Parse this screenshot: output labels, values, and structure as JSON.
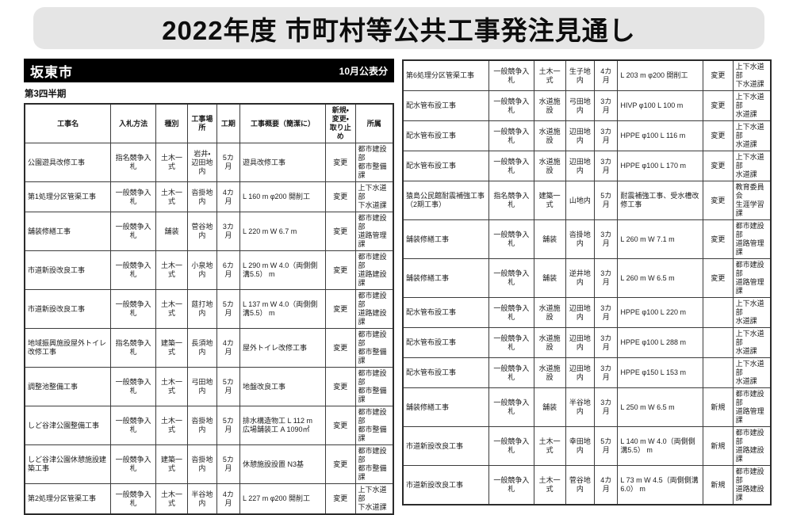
{
  "banner": {
    "title": "2022年度 市町村等公共工事発注見通し"
  },
  "panel": {
    "municipality": "坂東市",
    "publication_label": "10月公表分",
    "quarter_label": "第3四半期"
  },
  "colors": {
    "banner_bg": "#e5e5e5",
    "bar_bg": "#000000",
    "bar_text": "#ffffff",
    "table_border": "#3c3c3c"
  },
  "table": {
    "columns": [
      "工事名",
      "入札方法",
      "種別",
      "工事場所",
      "工期",
      "工事概要（簡潔に）",
      "新規・\n変更・\n取り止め",
      "所属"
    ],
    "column_aligns": [
      "left",
      "center",
      "center",
      "center",
      "center",
      "left",
      "center",
      "left"
    ],
    "left_rows": [
      [
        "公園遊具改修工事",
        "指名競争入札",
        "土木一式",
        "岩井・辺田地内",
        "5カ月",
        "遊具改修工事",
        "変更",
        "都市建設部\n都市整備課"
      ],
      [
        "第1処理分区管渠工事",
        "一般競争入札",
        "土木一式",
        "沓掛地内",
        "4カ月",
        "L 160 m  φ200 開削工",
        "変更",
        "上下水道部\n下水道課"
      ],
      [
        "舗装修繕工事",
        "一般競争入札",
        "舗装",
        "菅谷地内",
        "3カ月",
        "L 220 m  W 6.7 m",
        "変更",
        "都市建設部\n道路管理課"
      ],
      [
        "市道新設改良工事",
        "一般競争入札",
        "土木一式",
        "小泉地内",
        "6カ月",
        "L 290 m  W 4.0（両側側溝5.5） m",
        "変更",
        "都市建設部\n道路建設課"
      ],
      [
        "市道新設改良工事",
        "一般競争入札",
        "土木一式",
        "莚打地内",
        "5カ月",
        "L 137 m  W 4.0（両側側溝5.5） m",
        "変更",
        "都市建設部\n道路建設課"
      ],
      [
        "地域振興施設屋外トイレ改修工事",
        "指名競争入札",
        "建築一式",
        "長須地内",
        "4カ月",
        "屋外トイレ改修工事",
        "変更",
        "都市建設部\n都市整備課"
      ],
      [
        "調整池整備工事",
        "一般競争入札",
        "土木一式",
        "弓田地内",
        "5カ月",
        "地盤改良工事",
        "変更",
        "都市建設部\n都市整備課"
      ],
      [
        "しど谷津公園整備工事",
        "一般競争入札",
        "土木一式",
        "沓掛地内",
        "5カ月",
        "排水構造物工 L 112 m\n広場舗装工 A 1090㎡",
        "変更",
        "都市建設部\n都市整備課"
      ],
      [
        "しど谷津公園休憩施設建築工事",
        "一般競争入札",
        "建築一式",
        "沓掛地内",
        "5カ月",
        "休憩施設設置 N3基",
        "変更",
        "都市建設部\n都市整備課"
      ],
      [
        "第2処理分区管渠工事",
        "一般競争入札",
        "土木一式",
        "半谷地内",
        "4カ月",
        "L 227 m  φ200 開削工",
        "変更",
        "上下水道部\n下水道課"
      ]
    ],
    "right_rows": [
      [
        "第6処理分区管渠工事",
        "一般競争入札",
        "土木一式",
        "生子地内",
        "4カ月",
        "L 203 m  φ200 開削工",
        "変更",
        "上下水道部\n下水道課"
      ],
      [
        "配水管布設工事",
        "一般競争入札",
        "水道施設",
        "弓田地内",
        "3カ月",
        "HIVP φ100  L 100 m",
        "変更",
        "上下水道部\n水道課"
      ],
      [
        "配水管布設工事",
        "一般競争入札",
        "水道施設",
        "辺田地内",
        "3カ月",
        "HPPE φ100  L 116 m",
        "変更",
        "上下水道部\n水道課"
      ],
      [
        "配水管布設工事",
        "一般競争入札",
        "水道施設",
        "辺田地内",
        "3カ月",
        "HPPE φ100  L 170 m",
        "変更",
        "上下水道部\n水道課"
      ],
      [
        "猿島公民館耐震補強工事（2期工事）",
        "指名競争入札",
        "建築一式",
        "山地内",
        "5カ月",
        "耐震補強工事、受水槽改修工事",
        "変更",
        "教育委員会\n生涯学習課"
      ],
      [
        "舗装修繕工事",
        "一般競争入札",
        "舗装",
        "沓掛地内",
        "3カ月",
        "L 260 m  W 7.1 m",
        "変更",
        "都市建設部\n道路管理課"
      ],
      [
        "舗装修繕工事",
        "一般競争入札",
        "舗装",
        "逆井地内",
        "3カ月",
        "L 260 m  W 6.5 m",
        "変更",
        "都市建設部\n道路管理課"
      ],
      [
        "配水管布設工事",
        "一般競争入札",
        "水道施設",
        "辺田地内",
        "3カ月",
        "HPPE φ100  L 220 m",
        "",
        "上下水道部\n水道課"
      ],
      [
        "配水管布設工事",
        "一般競争入札",
        "水道施設",
        "辺田地内",
        "3カ月",
        "HPPE φ100  L 288 m",
        "",
        "上下水道部\n水道課"
      ],
      [
        "配水管布設工事",
        "一般競争入札",
        "水道施設",
        "辺田地内",
        "3カ月",
        "HPPE φ150  L 153 m",
        "",
        "上下水道部\n水道課"
      ],
      [
        "舗装修繕工事",
        "一般競争入札",
        "舗装",
        "半谷地内",
        "3カ月",
        "L 250 m  W 6.5 m",
        "新規",
        "都市建設部\n道路管理課"
      ],
      [
        "市道新設改良工事",
        "一般競争入札",
        "土木一式",
        "幸田地内",
        "5カ月",
        "L 140 m  W 4.0（両側側溝5.5） m",
        "新規",
        "都市建設部\n道路建設課"
      ],
      [
        "市道新設改良工事",
        "一般競争入札",
        "土木一式",
        "菅谷地内",
        "4カ月",
        "L 73 m  W 4.5（両側側溝6.0） m",
        "新規",
        "都市建設部\n道路建設課"
      ]
    ]
  }
}
